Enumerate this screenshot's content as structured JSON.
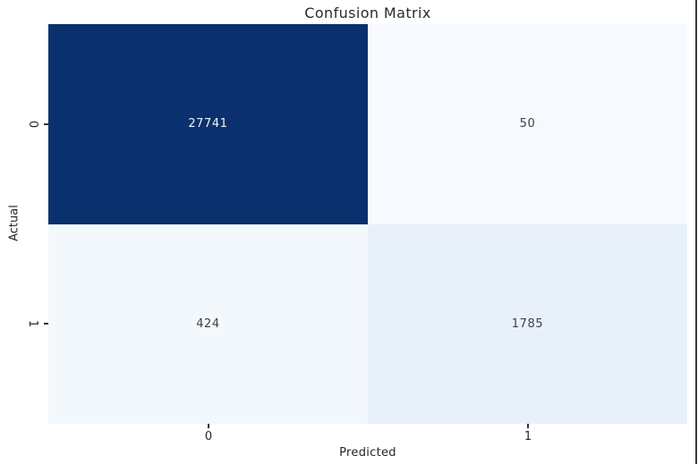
{
  "title": "Confusion Matrix",
  "axes": {
    "xlabel": "Predicted",
    "ylabel": "Actual",
    "x_ticklabels": [
      "0",
      "1"
    ],
    "y_ticklabels": [
      "0",
      "1"
    ]
  },
  "chart_data": {
    "type": "heatmap",
    "title": "Confusion Matrix",
    "xlabel": "Predicted",
    "ylabel": "Actual",
    "x_categories": [
      "0",
      "1"
    ],
    "y_categories": [
      "0",
      "1"
    ],
    "values": [
      [
        27741,
        50
      ],
      [
        424,
        1785
      ]
    ],
    "annotations": [
      [
        "27741",
        "50"
      ],
      [
        "424",
        "1785"
      ]
    ],
    "colormap": "Blues",
    "colorbar": false,
    "legend": "none",
    "grid": false
  },
  "cells": [
    {
      "row": "0",
      "col": "0",
      "label": "27741",
      "bg": "#0a316d",
      "fg": "#f2f4f8"
    },
    {
      "row": "0",
      "col": "1",
      "label": "50",
      "bg": "#f6f9fe",
      "fg": "#3a3f47"
    },
    {
      "row": "1",
      "col": "0",
      "label": "424",
      "bg": "#f3f8fc",
      "fg": "#3a3f47"
    },
    {
      "row": "1",
      "col": "1",
      "label": "1785",
      "bg": "#e8f1fa",
      "fg": "#3a3f47"
    }
  ],
  "colors": {
    "heatmap_max": "#0a316d",
    "heatmap_min": "#f7fbff",
    "text": "#262626",
    "edge_line": "#3a3a3a",
    "background": "#ffffff"
  }
}
